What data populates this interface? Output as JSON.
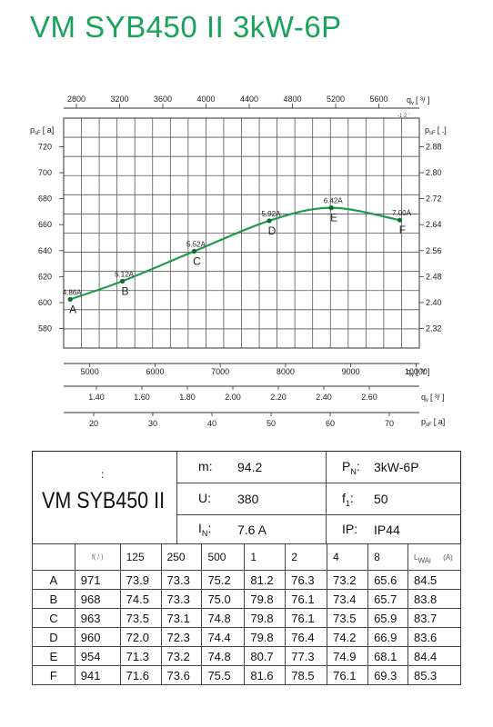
{
  "title": "VM SYB450 II 3kW-6P",
  "chart_data": {
    "type": "line",
    "series": [
      {
        "points": [
          [
            4700,
            602.5
          ],
          [
            5500,
            616.5
          ],
          [
            6600,
            639.5
          ],
          [
            7750,
            663
          ],
          [
            8700,
            673
          ],
          [
            9750,
            663.5
          ]
        ],
        "point_labels": [
          "A",
          "B",
          "C",
          "D",
          "E",
          "F"
        ],
        "current_labels": [
          "4.86A",
          "5.12A",
          "5.52A",
          "5.92A",
          "6.42A",
          "7.00A"
        ]
      }
    ],
    "xlim": [
      4600,
      10050
    ],
    "ylim": [
      565,
      742
    ],
    "grid": true,
    "left_axis": {
      "label": "p",
      "label_sub": "sF",
      "label_unit": "[ a]",
      "ticks": [
        "580",
        "600",
        "620",
        "640",
        "660",
        "680",
        "700",
        "720"
      ]
    },
    "right_axis": {
      "label": "p",
      "label_sub": "sF",
      "label_unit": "[ .]",
      "ticks": [
        "2.32",
        "2.40",
        "2.48",
        "2.56",
        "2.64",
        "2.72",
        "2.80",
        "2.88"
      ]
    },
    "top_axis": {
      "label": "q",
      "label_sub": "v",
      "label_unit": "[ ³/ ]",
      "label_extra": "-1 2 ' ",
      "ticks": [
        "2800",
        "3200",
        "3600",
        "4000",
        "4400",
        "4800",
        "5200",
        "5600"
      ]
    },
    "bottom_axis_1": {
      "label": "q",
      "label_sub": "v",
      "label_unit": "[ ³/ ]",
      "ticks": [
        "5000",
        "6000",
        "7000",
        "8000",
        "9000",
        "10000"
      ]
    },
    "bottom_axis_2": {
      "label": "q",
      "label_sub": "v",
      "label_unit": "[ ³/ ]",
      "ticks": [
        "1.40",
        "1.60",
        "1.80",
        "2.00",
        "2.20",
        "2.40",
        "2.60"
      ]
    },
    "bottom_axis_3": {
      "label": "p",
      "label_sub": "sF",
      "label_unit": "[ a]",
      "ticks": [
        "20",
        "30",
        "40",
        "50",
        "60",
        "70"
      ]
    }
  },
  "specs": {
    "model": "VM SYB450 II",
    "model_colon": ":",
    "m_label": "m:",
    "m_value": "94.2",
    "u_label": "U:",
    "u_value": "380",
    "in_label": "I",
    "in_sub": "N",
    "in_colon": ":",
    "in_value": "7.6  A",
    "pn_label": "P",
    "pn_sub": "N",
    "pn_colon": ":",
    "pn_value": "3kW-6P",
    "f1_label": "f",
    "f1_sub": "1",
    "f1_colon": ":",
    "f1_value": "50",
    "ip_label": "IP:",
    "ip_value": "IP44"
  },
  "noise_table": {
    "unit_header": "f( /  )",
    "headers": [
      "125",
      "250",
      "500",
      "1",
      "2",
      "4",
      "8"
    ],
    "lwa_header": "L",
    "lwa_sub": "WAi",
    "lwa_unit": "(A)",
    "rows": [
      {
        "label": "A",
        "values": [
          "971",
          "73.9",
          "73.3",
          "75.2",
          "81.2",
          "76.3",
          "73.2",
          "65.6",
          "84.5"
        ]
      },
      {
        "label": "B",
        "values": [
          "968",
          "74.5",
          "73.3",
          "75.0",
          "79.8",
          "76.1",
          "73.4",
          "65.7",
          "83.8"
        ]
      },
      {
        "label": "C",
        "values": [
          "963",
          "73.5",
          "73.1",
          "74.8",
          "79.8",
          "76.1",
          "73.5",
          "65.9",
          "83.7"
        ]
      },
      {
        "label": "D",
        "values": [
          "960",
          "72.0",
          "72.3",
          "74.4",
          "79.8",
          "76.4",
          "74.2",
          "66.9",
          "83.6"
        ]
      },
      {
        "label": "E",
        "values": [
          "954",
          "71.3",
          "73.2",
          "74.8",
          "80.7",
          "77.3",
          "74.9",
          "68.1",
          "84.4"
        ]
      },
      {
        "label": "F",
        "values": [
          "941",
          "71.6",
          "73.6",
          "75.5",
          "81.6",
          "78.5",
          "76.1",
          "69.3",
          "85.3"
        ]
      }
    ]
  },
  "colors": {
    "title": "#18a35a",
    "curve": "#1e9a4c",
    "point": "#0d6b30",
    "grid": "#555555"
  }
}
